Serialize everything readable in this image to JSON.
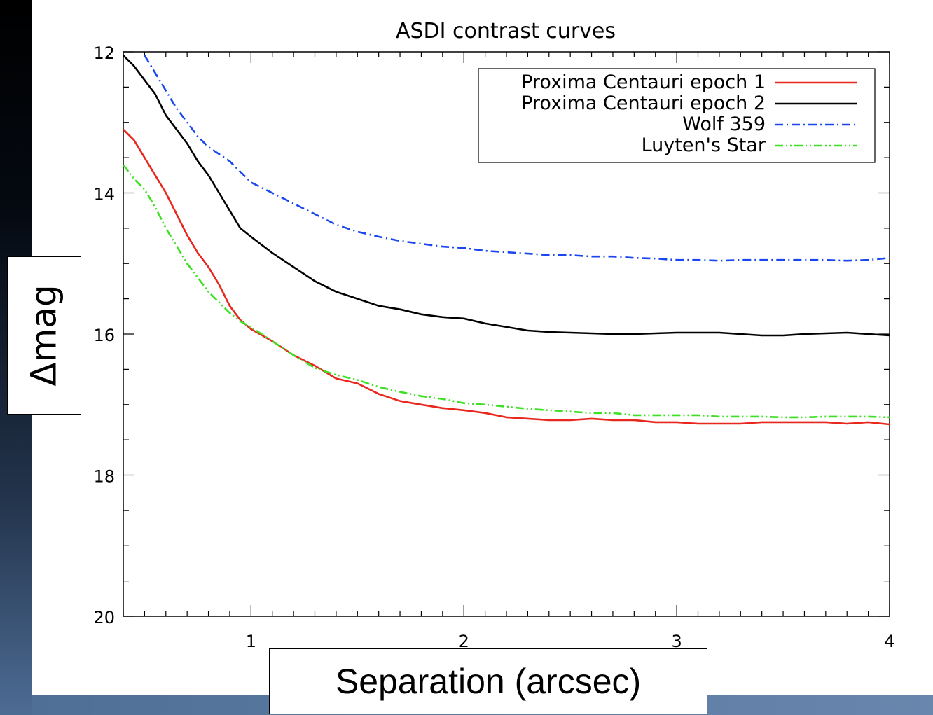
{
  "chart_data": {
    "type": "line",
    "title": "ASDI contrast curves",
    "xlabel": "Separation (arcsec)",
    "ylabel": "Δmag",
    "xlim": [
      0.4,
      4
    ],
    "ylim": [
      12,
      20
    ],
    "y_inverted": true,
    "x_ticks": [
      1,
      2,
      3,
      4
    ],
    "y_ticks": [
      12,
      14,
      16,
      18,
      20
    ],
    "legend_position": "top-right",
    "grid": false,
    "series": [
      {
        "name": "Proxima Centauri epoch 1",
        "color": "#e8281e",
        "dash": "solid",
        "x": [
          0.4,
          0.45,
          0.5,
          0.55,
          0.6,
          0.65,
          0.7,
          0.75,
          0.8,
          0.85,
          0.9,
          0.95,
          1.0,
          1.1,
          1.2,
          1.3,
          1.4,
          1.5,
          1.6,
          1.7,
          1.8,
          1.9,
          2.0,
          2.1,
          2.2,
          2.3,
          2.4,
          2.5,
          2.6,
          2.7,
          2.8,
          2.9,
          3.0,
          3.1,
          3.2,
          3.3,
          3.4,
          3.5,
          3.6,
          3.7,
          3.8,
          3.9,
          4.0
        ],
        "y": [
          13.1,
          13.25,
          13.5,
          13.75,
          14.0,
          14.3,
          14.6,
          14.85,
          15.05,
          15.3,
          15.6,
          15.8,
          15.93,
          16.1,
          16.3,
          16.45,
          16.63,
          16.7,
          16.85,
          16.95,
          17.0,
          17.05,
          17.08,
          17.12,
          17.18,
          17.2,
          17.22,
          17.22,
          17.2,
          17.22,
          17.22,
          17.25,
          17.25,
          17.27,
          17.27,
          17.27,
          17.25,
          17.25,
          17.25,
          17.25,
          17.27,
          17.25,
          17.28
        ]
      },
      {
        "name": "Proxima Centauri epoch 2",
        "color": "#000000",
        "dash": "solid",
        "x": [
          0.4,
          0.45,
          0.5,
          0.55,
          0.6,
          0.65,
          0.7,
          0.75,
          0.8,
          0.85,
          0.9,
          0.95,
          1.0,
          1.1,
          1.2,
          1.3,
          1.4,
          1.5,
          1.6,
          1.7,
          1.8,
          1.9,
          2.0,
          2.1,
          2.2,
          2.3,
          2.4,
          2.5,
          2.6,
          2.7,
          2.8,
          2.9,
          3.0,
          3.1,
          3.2,
          3.3,
          3.4,
          3.5,
          3.6,
          3.7,
          3.8,
          3.9,
          4.0
        ],
        "y": [
          12.05,
          12.2,
          12.4,
          12.6,
          12.9,
          13.1,
          13.3,
          13.55,
          13.75,
          14.0,
          14.25,
          14.5,
          14.62,
          14.85,
          15.05,
          15.25,
          15.4,
          15.5,
          15.6,
          15.65,
          15.72,
          15.76,
          15.78,
          15.85,
          15.9,
          15.95,
          15.97,
          15.98,
          15.99,
          16.0,
          16.0,
          15.99,
          15.98,
          15.98,
          15.98,
          16.0,
          16.02,
          16.02,
          16.0,
          15.99,
          15.98,
          16.0,
          16.02
        ]
      },
      {
        "name": "Wolf 359",
        "color": "#1a46f0",
        "dash": "dash-dot",
        "x": [
          0.5,
          0.55,
          0.6,
          0.65,
          0.7,
          0.75,
          0.8,
          0.85,
          0.9,
          0.95,
          1.0,
          1.1,
          1.2,
          1.3,
          1.4,
          1.5,
          1.6,
          1.7,
          1.8,
          1.9,
          2.0,
          2.1,
          2.2,
          2.3,
          2.4,
          2.5,
          2.6,
          2.7,
          2.8,
          2.9,
          3.0,
          3.1,
          3.2,
          3.3,
          3.4,
          3.5,
          3.6,
          3.7,
          3.8,
          3.9,
          4.0
        ],
        "y": [
          12.05,
          12.3,
          12.55,
          12.8,
          13.0,
          13.2,
          13.35,
          13.45,
          13.55,
          13.7,
          13.85,
          14.0,
          14.15,
          14.3,
          14.45,
          14.55,
          14.62,
          14.68,
          14.72,
          14.76,
          14.78,
          14.82,
          14.84,
          14.86,
          14.88,
          14.88,
          14.9,
          14.9,
          14.92,
          14.93,
          14.95,
          14.95,
          14.96,
          14.95,
          14.95,
          14.95,
          14.95,
          14.95,
          14.96,
          14.95,
          14.92
        ]
      },
      {
        "name": "Luyten's Star",
        "color": "#3ee024",
        "dash": "dash-dot-dot",
        "x": [
          0.4,
          0.45,
          0.5,
          0.55,
          0.6,
          0.65,
          0.7,
          0.75,
          0.8,
          0.85,
          0.9,
          0.95,
          1.0,
          1.1,
          1.2,
          1.3,
          1.4,
          1.5,
          1.6,
          1.7,
          1.8,
          1.9,
          2.0,
          2.1,
          2.2,
          2.3,
          2.4,
          2.5,
          2.6,
          2.7,
          2.8,
          2.9,
          3.0,
          3.1,
          3.2,
          3.3,
          3.4,
          3.5,
          3.6,
          3.7,
          3.8,
          3.9,
          4.0
        ],
        "y": [
          13.6,
          13.8,
          13.95,
          14.2,
          14.5,
          14.75,
          15.0,
          15.2,
          15.4,
          15.55,
          15.7,
          15.82,
          15.9,
          16.1,
          16.3,
          16.48,
          16.58,
          16.65,
          16.75,
          16.82,
          16.88,
          16.92,
          16.98,
          17.0,
          17.03,
          17.06,
          17.08,
          17.1,
          17.12,
          17.12,
          17.15,
          17.15,
          17.15,
          17.15,
          17.17,
          17.17,
          17.17,
          17.18,
          17.18,
          17.17,
          17.17,
          17.17,
          17.18
        ]
      }
    ]
  }
}
